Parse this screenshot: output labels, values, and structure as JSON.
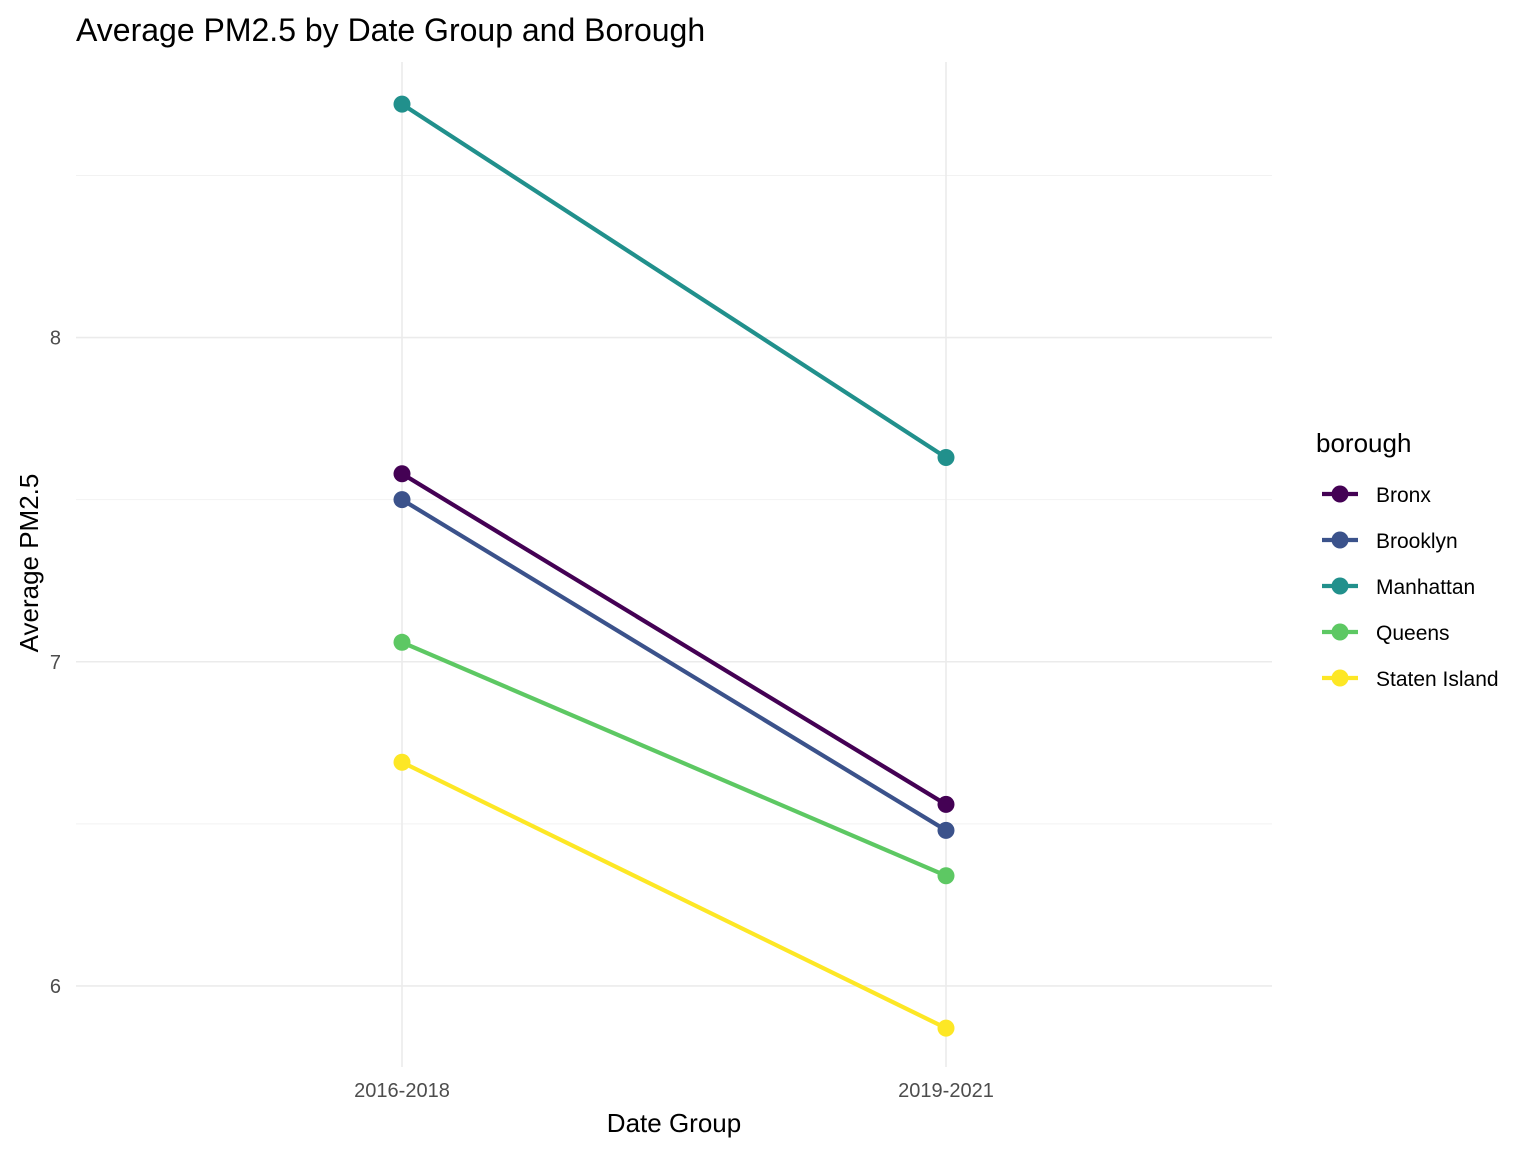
{
  "chart_data": {
    "type": "line",
    "title": "Average PM2.5 by Date Group and Borough",
    "xlabel": "Date Group",
    "ylabel": "Average PM2.5",
    "categories": [
      "2016-2018",
      "2019-2021"
    ],
    "ylim": [
      5.75,
      8.85
    ],
    "yticks": [
      6,
      7,
      8
    ],
    "grid": true,
    "legend": {
      "title": "borough",
      "position": "right"
    },
    "series": [
      {
        "name": "Bronx",
        "color": "#440154",
        "values": [
          7.58,
          6.56
        ]
      },
      {
        "name": "Brooklyn",
        "color": "#3b528b",
        "values": [
          7.5,
          6.48
        ]
      },
      {
        "name": "Manhattan",
        "color": "#21908c",
        "values": [
          8.72,
          7.63
        ]
      },
      {
        "name": "Queens",
        "color": "#5dc863",
        "values": [
          7.06,
          6.34
        ]
      },
      {
        "name": "Staten Island",
        "color": "#fde725",
        "values": [
          6.69,
          5.87
        ]
      }
    ]
  }
}
